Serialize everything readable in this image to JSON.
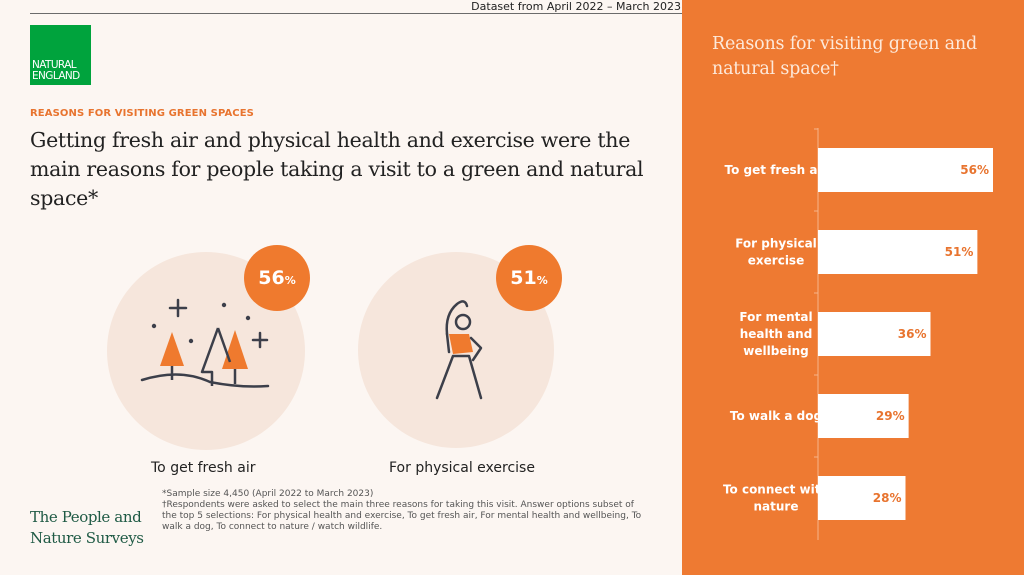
{
  "header": {
    "dataset_note": "Dataset from April 2022 – March 2023"
  },
  "logo": {
    "line1": "NATURAL",
    "line2": "ENGLAND"
  },
  "section": {
    "eyebrow": "REASONS FOR VISITING GREEN SPACES",
    "headline": "Getting fresh air and physical health and exercise were the main reasons for people taking a visit to a green and natural space*"
  },
  "stats": [
    {
      "value": "56",
      "unit": "%",
      "caption": "To get fresh air",
      "icon": "trees-icon"
    },
    {
      "value": "51",
      "unit": "%",
      "caption": "For physical exercise",
      "icon": "stretching-person-icon"
    }
  ],
  "footnote": {
    "line1": "*Sample size 4,450 (April 2022 to March 2023)",
    "line2": "†Respondents were asked to select the main three reasons for taking this visit. Answer options subset of the top 5 selections: For physical health and exercise, To get fresh air, For mental health and wellbeing, To walk a dog, To connect to nature / watch wildlife."
  },
  "brand": {
    "line1": "The People and",
    "line2": "Nature Surveys"
  },
  "panel": {
    "title": "Reasons for visiting green and natural space†"
  },
  "colors": {
    "accent": "#ee7a32",
    "badge": "#ef7a2e",
    "brand_green": "#00a33d",
    "bar": "#ffffff",
    "bar_label": "#e8742f"
  },
  "chart_data": {
    "type": "bar",
    "orientation": "horizontal",
    "title": "Reasons for visiting green and natural space†",
    "categories": [
      [
        "To get fresh air"
      ],
      [
        "For physical",
        "exercise"
      ],
      [
        "For mental",
        "health and",
        "wellbeing"
      ],
      [
        "To walk a dog"
      ],
      [
        "To connect with",
        "nature"
      ]
    ],
    "values": [
      56,
      51,
      36,
      29,
      28
    ],
    "value_labels": [
      "56%",
      "51%",
      "36%",
      "29%",
      "28%"
    ],
    "xlim": [
      0,
      56
    ],
    "grid": false
  }
}
